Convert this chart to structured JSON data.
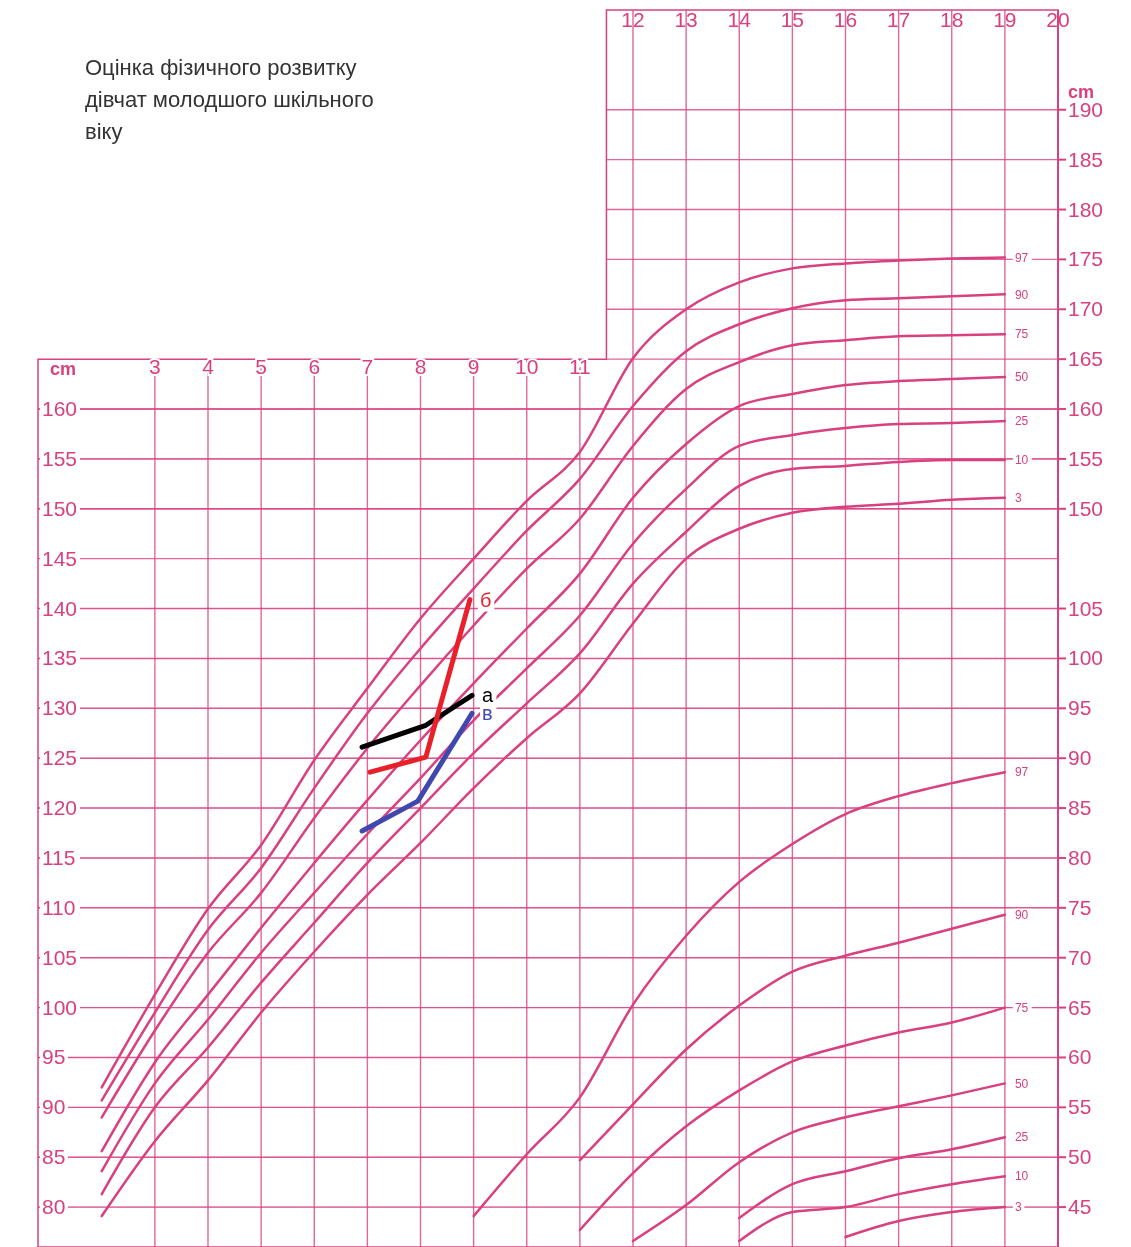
{
  "chart_data": {
    "type": "line",
    "title": "Оцінка фізичного розвитку дівчат молодшого шкільного віку",
    "ylabel": "cm",
    "y3label": "cm",
    "xlim": [
      0.8,
      20
    ],
    "xticks": [
      3,
      4,
      5,
      6,
      7,
      8,
      9,
      10,
      11
    ],
    "x2lim": [
      0.8,
      20
    ],
    "x2ticks": [
      12,
      13,
      14,
      15,
      16,
      17,
      18,
      19,
      20
    ],
    "ylim": [
      76,
      200
    ],
    "yticks": [
      80,
      85,
      90,
      95,
      100,
      105,
      110,
      115,
      120,
      125,
      130,
      135,
      140,
      145,
      150,
      155,
      160
    ],
    "y3lim": [
      76,
      200
    ],
    "y3ticks": [
      150,
      155,
      160,
      165,
      170,
      175,
      180,
      185,
      190
    ],
    "y2lim": [
      41,
      165
    ],
    "y2ticks": [
      45,
      50,
      55,
      60,
      65,
      70,
      75,
      80,
      85,
      90,
      95,
      100,
      105
    ],
    "grid": true,
    "marker": "none",
    "line_style": "solid",
    "series": [
      {
        "name": "97",
        "color": "#d9407f",
        "x": [
          2,
          3,
          4,
          5,
          6,
          7,
          8,
          9,
          10,
          11,
          12,
          13,
          14,
          15,
          16,
          17,
          18,
          19
        ],
        "values": [
          92,
          101.3,
          109.9,
          116.3,
          124.8,
          132,
          139,
          145,
          150.8,
          155.7,
          165.1,
          170,
          172.7,
          174.1,
          174.6,
          174.9,
          175.1,
          175.2
        ]
      },
      {
        "name": "90",
        "color": "#d9407f",
        "x": [
          2,
          3,
          4,
          5,
          6,
          7,
          8,
          9,
          10,
          11,
          12,
          13,
          14,
          15,
          16,
          17,
          18,
          19
        ],
        "values": [
          90.7,
          99.5,
          107.8,
          114,
          122,
          129.5,
          136,
          142,
          147.8,
          153,
          160.3,
          165.8,
          168.5,
          170.1,
          170.9,
          171.1,
          171.3,
          171.5
        ]
      },
      {
        "name": "75",
        "color": "#d9407f",
        "x": [
          2,
          3,
          4,
          5,
          6,
          7,
          8,
          9,
          10,
          11,
          12,
          13,
          14,
          15,
          16,
          17,
          18,
          19
        ],
        "values": [
          89,
          97.7,
          105.5,
          111.5,
          119,
          126,
          132.3,
          138.3,
          144,
          149,
          156.3,
          162,
          164.7,
          166.4,
          166.9,
          167.3,
          167.4,
          167.5
        ]
      },
      {
        "name": "50",
        "color": "#d9407f",
        "x": [
          2,
          3,
          4,
          5,
          6,
          7,
          8,
          9,
          10,
          11,
          12,
          13,
          14,
          15,
          16,
          17,
          18,
          19
        ],
        "values": [
          85.6,
          94.5,
          101.3,
          108,
          114.5,
          120.8,
          126.8,
          132.5,
          138,
          143.5,
          151.1,
          156.5,
          160.3,
          161.5,
          162.4,
          162.8,
          163,
          163.2
        ]
      },
      {
        "name": "25",
        "color": "#d9407f",
        "x": [
          2,
          3,
          4,
          5,
          6,
          7,
          8,
          9,
          10,
          11,
          12,
          13,
          14,
          15,
          16,
          17,
          18,
          19
        ],
        "values": [
          83.6,
          92.4,
          98.8,
          105.5,
          111.5,
          117.4,
          123,
          128.8,
          134,
          139.3,
          146.5,
          152,
          156.3,
          157.4,
          158.1,
          158.5,
          158.6,
          158.8
        ]
      },
      {
        "name": "10",
        "color": "#d9407f",
        "x": [
          2,
          3,
          4,
          5,
          6,
          7,
          8,
          9,
          10,
          11,
          12,
          13,
          14,
          15,
          16,
          17,
          18,
          19
        ],
        "values": [
          81.3,
          90,
          96,
          102.5,
          108.5,
          114.5,
          120,
          125.5,
          130.5,
          135.5,
          142.5,
          147.7,
          152.3,
          154,
          154.3,
          154.7,
          154.9,
          154.9
        ]
      },
      {
        "name": "3",
        "color": "#d9407f",
        "x": [
          2,
          3,
          4,
          5,
          6,
          7,
          8,
          9,
          10,
          11,
          12,
          13,
          14,
          15,
          16,
          17,
          18,
          19
        ],
        "values": [
          79.1,
          86.6,
          92.7,
          99.5,
          105.6,
          111.3,
          116.5,
          122,
          127,
          131.5,
          138.5,
          145,
          148,
          149.6,
          150.2,
          150.5,
          150.9,
          151.1
        ]
      },
      {
        "name": "97",
        "color": "#d9407f",
        "axis": "y2",
        "x": [
          9,
          10,
          11,
          12,
          13,
          14,
          15,
          16,
          17,
          18,
          19
        ],
        "values": [
          44.1,
          50.3,
          56,
          65.3,
          72.2,
          77.6,
          81.4,
          84.4,
          86.2,
          87.5,
          88.6
        ]
      },
      {
        "name": "90",
        "color": "#d9407f",
        "axis": "y2",
        "x": [
          11,
          12,
          13,
          14,
          15,
          16,
          17,
          18,
          19
        ],
        "values": [
          49.7,
          55.3,
          60.8,
          65.2,
          68.6,
          70.2,
          71.5,
          72.9,
          74.3
        ]
      },
      {
        "name": "75",
        "color": "#d9407f",
        "axis": "y2",
        "x": [
          11,
          12,
          13,
          14,
          15,
          16,
          17,
          18,
          19
        ],
        "values": [
          42.7,
          48.4,
          53.1,
          56.7,
          59.6,
          61.2,
          62.5,
          63.5,
          65
        ]
      },
      {
        "name": "50",
        "color": "#d9407f",
        "axis": "y2",
        "x": [
          12,
          13,
          14,
          15,
          16,
          17,
          18,
          19
        ],
        "values": [
          41.6,
          45.2,
          49.5,
          52.5,
          54,
          55.1,
          56.2,
          57.4
        ]
      },
      {
        "name": "25",
        "color": "#d9407f",
        "axis": "y2",
        "x": [
          14,
          15,
          16,
          17,
          18,
          19
        ],
        "values": [
          43.9,
          47.3,
          48.6,
          49.9,
          50.8,
          52
        ]
      },
      {
        "name": "10",
        "color": "#d9407f",
        "axis": "y2",
        "x": [
          14,
          15,
          16,
          17,
          18,
          19
        ],
        "values": [
          41.6,
          44.5,
          45,
          46.3,
          47.3,
          48.1
        ]
      },
      {
        "name": "3",
        "color": "#d9407f",
        "axis": "y2",
        "x": [
          16,
          17,
          18,
          19
        ],
        "values": [
          42,
          43.6,
          44.5,
          45
        ]
      },
      {
        "name": "а",
        "color": "#000000",
        "x": [
          6.9,
          8.1,
          8.97
        ],
        "values": [
          126.1,
          128.3,
          131.3
        ]
      },
      {
        "name": "б",
        "color": "#e8202a",
        "x": [
          7.05,
          8.1,
          8.93
        ],
        "values": [
          123.6,
          125.1,
          140.9
        ]
      },
      {
        "name": "в",
        "color": "#4048b0",
        "x": [
          6.9,
          7.95,
          8.97
        ],
        "values": [
          117.7,
          120.7,
          129.5
        ]
      }
    ]
  }
}
